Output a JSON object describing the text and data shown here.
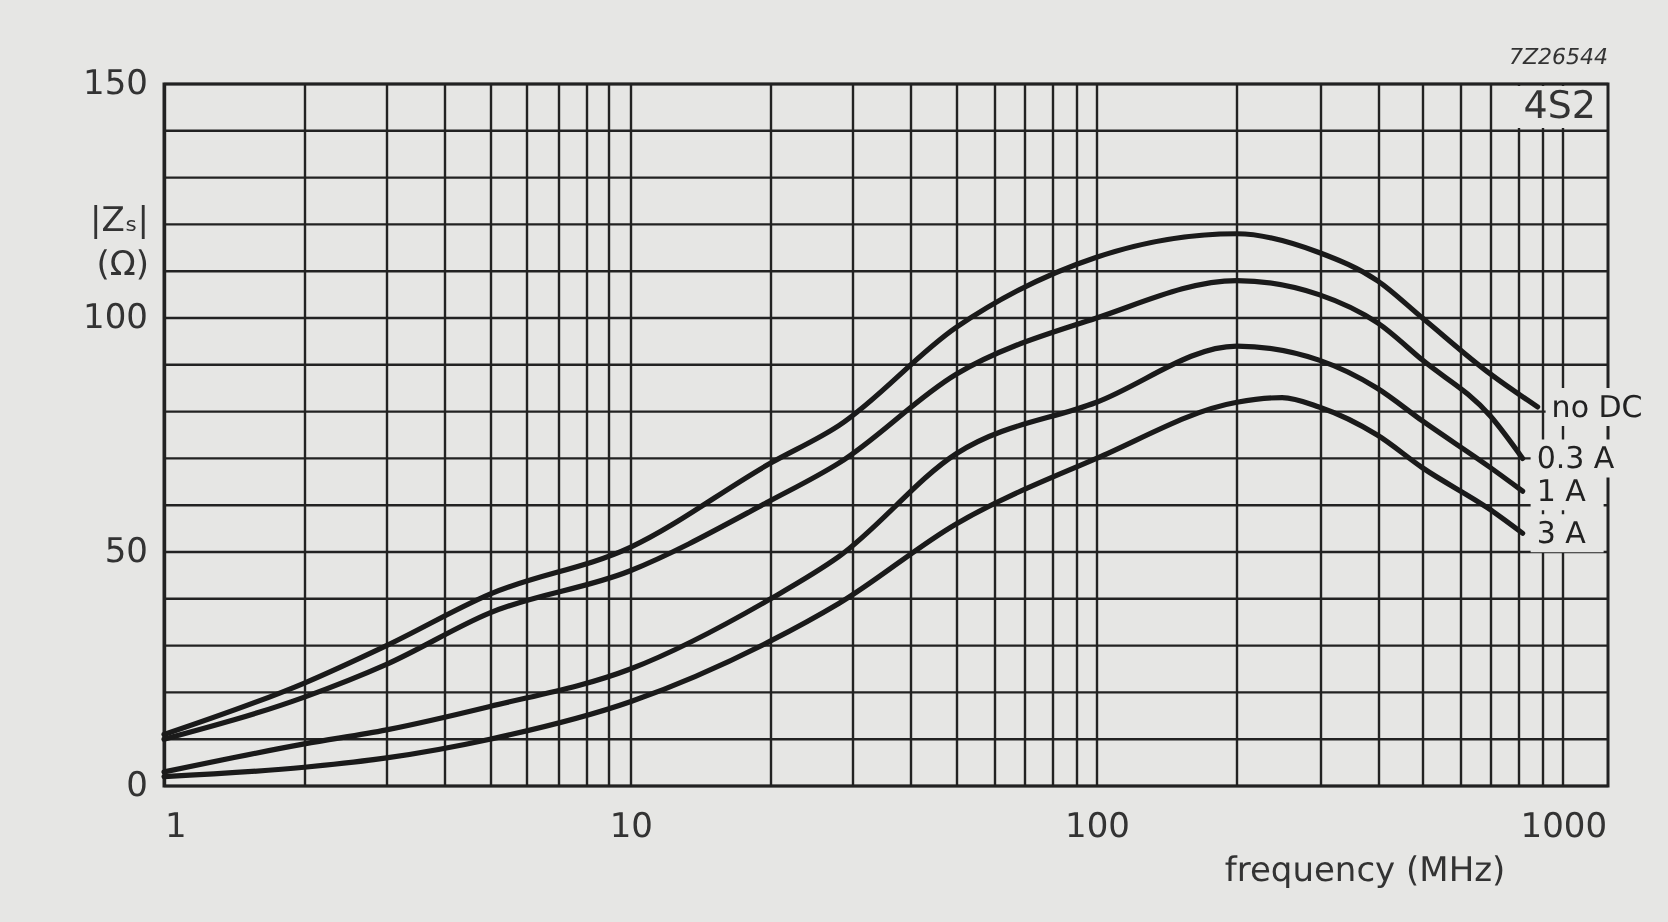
{
  "chart_data": {
    "type": "line",
    "xlabel": "frequency (MHz)",
    "ylabel": "|Zₛ| (Ω)",
    "annotations": [
      "7Z26544",
      "4S2"
    ],
    "log": "x",
    "grid": true,
    "legend": false,
    "marker": "none",
    "line_style": "solid",
    "xlim": [
      1,
      1250
    ],
    "ylim": [
      0,
      150
    ],
    "xticks": [
      1,
      {
        "value": 2,
        "label": null
      },
      {
        "value": 3,
        "label": null
      },
      {
        "value": 4,
        "label": null
      },
      {
        "value": 5,
        "label": null
      },
      {
        "value": 6,
        "label": null
      },
      {
        "value": 7,
        "label": null
      },
      {
        "value": 8,
        "label": null
      },
      {
        "value": 9,
        "label": null
      },
      10,
      {
        "value": 20,
        "label": null
      },
      {
        "value": 30,
        "label": null
      },
      {
        "value": 40,
        "label": null
      },
      {
        "value": 50,
        "label": null
      },
      {
        "value": 60,
        "label": null
      },
      {
        "value": 70,
        "label": null
      },
      {
        "value": 80,
        "label": null
      },
      {
        "value": 90,
        "label": null
      },
      100,
      {
        "value": 200,
        "label": null
      },
      {
        "value": 300,
        "label": null
      },
      {
        "value": 400,
        "label": null
      },
      {
        "value": 500,
        "label": null
      },
      {
        "value": 600,
        "label": null
      },
      {
        "value": 700,
        "label": null
      },
      {
        "value": 800,
        "label": null
      },
      {
        "value": 900,
        "label": null
      },
      1000
    ],
    "yticks": [
      0,
      {
        "value": 10,
        "label": null
      },
      {
        "value": 20,
        "label": null
      },
      {
        "value": 30,
        "label": null
      },
      {
        "value": 40,
        "label": null
      },
      50,
      {
        "value": 60,
        "label": null
      },
      {
        "value": 70,
        "label": null
      },
      {
        "value": 80,
        "label": null
      },
      {
        "value": 90,
        "label": null
      },
      100,
      {
        "value": 110,
        "label": null
      },
      {
        "value": 120,
        "label": null
      },
      {
        "value": 130,
        "label": null
      },
      {
        "value": 140,
        "label": null
      },
      150
    ],
    "series": [
      {
        "name": "no DC",
        "color": "#1a1a1a",
        "x": [
          1,
          2,
          3,
          5,
          10,
          20,
          28,
          50,
          100,
          200,
          300,
          400,
          500,
          700,
          883
        ],
        "values": [
          11,
          22,
          30,
          41,
          51,
          69,
          77,
          98,
          113,
          118,
          114,
          108,
          100,
          88,
          81
        ]
      },
      {
        "name": "0.3 A",
        "color": "#1a1a1a",
        "x": [
          1,
          2,
          3,
          5,
          10,
          20,
          28,
          50,
          100,
          200,
          300,
          400,
          500,
          700,
          820
        ],
        "values": [
          10,
          19,
          26,
          37,
          46,
          61,
          69,
          88,
          100,
          108,
          105,
          99,
          91,
          79,
          70
        ]
      },
      {
        "name": "1 A",
        "color": "#1a1a1a",
        "x": [
          1,
          2,
          3,
          5,
          10,
          20,
          28,
          50,
          100,
          200,
          300,
          400,
          500,
          700,
          820
        ],
        "values": [
          3,
          9,
          12,
          17,
          25,
          40,
          49,
          71,
          82,
          94,
          91,
          85,
          78,
          68,
          63
        ]
      },
      {
        "name": "3 A",
        "color": "#1a1a1a",
        "x": [
          1,
          2,
          3,
          5,
          10,
          20,
          28,
          50,
          100,
          200,
          250,
          300,
          400,
          500,
          700,
          820
        ],
        "values": [
          2,
          4,
          6,
          10,
          18,
          31,
          39,
          56,
          70,
          82,
          83,
          81,
          75,
          68,
          59,
          54
        ]
      }
    ]
  }
}
